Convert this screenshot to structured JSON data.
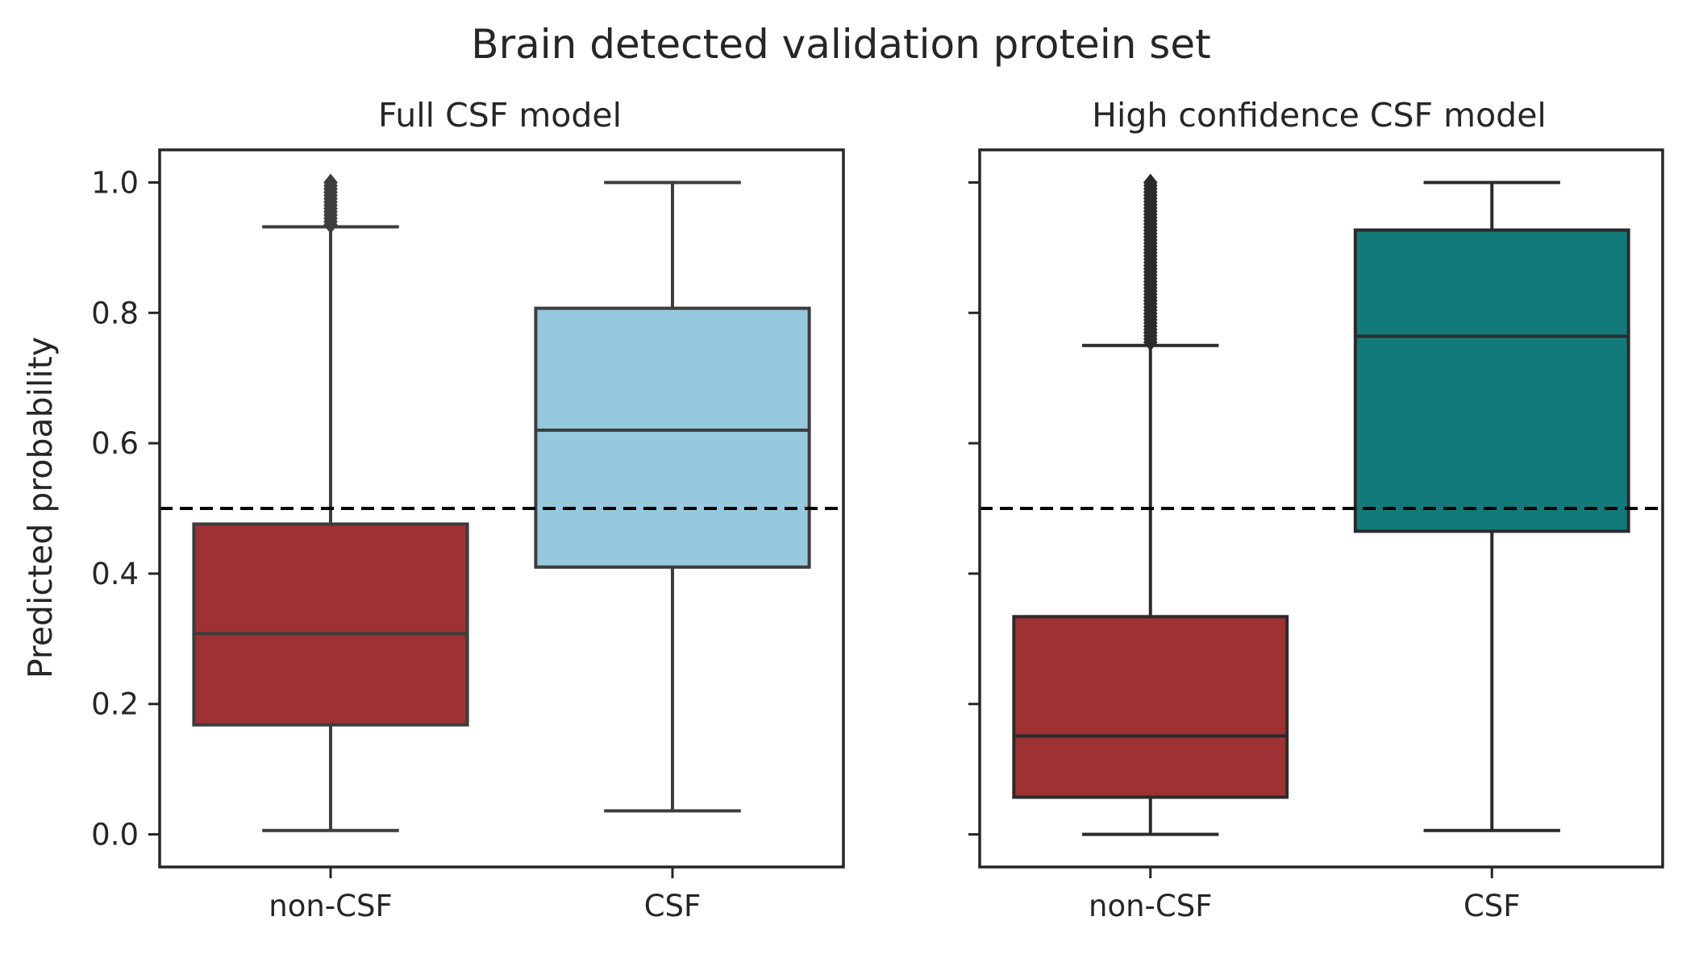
{
  "figure": {
    "title": "Brain detected validation protein set",
    "ylabel": "Predicted probability"
  },
  "chart_data": [
    {
      "type": "box",
      "title": "Full CSF model",
      "xlabel": "",
      "ylabel": "Predicted probability",
      "categories": [
        "non-CSF",
        "CSF"
      ],
      "ylim": [
        -0.05,
        1.05
      ],
      "yticks": [
        "0.0",
        "0.2",
        "0.4",
        "0.6",
        "0.8",
        "1.0"
      ],
      "grid": false,
      "reference_line": {
        "y": 0.5,
        "style": "dashed",
        "color": "#000000"
      },
      "boxes": [
        {
          "category": "non-CSF",
          "whisker_low": 0.006,
          "q1": 0.168,
          "median": 0.308,
          "q3": 0.476,
          "whisker_high": 0.932,
          "outliers_range": [
            0.935,
            1.0
          ],
          "color": "#9e3133"
        },
        {
          "category": "CSF",
          "whisker_low": 0.036,
          "q1": 0.41,
          "median": 0.62,
          "q3": 0.807,
          "whisker_high": 1.0,
          "outliers_range": null,
          "color": "#96c9de"
        }
      ]
    },
    {
      "type": "box",
      "title": "High confidence CSF model",
      "xlabel": "",
      "ylabel": "",
      "categories": [
        "non-CSF",
        "CSF"
      ],
      "ylim": [
        -0.05,
        1.05
      ],
      "yticks": [
        "0.0",
        "0.2",
        "0.4",
        "0.6",
        "0.8",
        "1.0"
      ],
      "grid": false,
      "reference_line": {
        "y": 0.5,
        "style": "dashed",
        "color": "#000000"
      },
      "boxes": [
        {
          "category": "non-CSF",
          "whisker_low": 0.0,
          "q1": 0.057,
          "median": 0.151,
          "q3": 0.334,
          "whisker_high": 0.75,
          "outliers_range": [
            0.755,
            1.0
          ],
          "color": "#9e3133"
        },
        {
          "category": "CSF",
          "whisker_low": 0.006,
          "q1": 0.465,
          "median": 0.764,
          "q3": 0.927,
          "whisker_high": 1.0,
          "outliers_range": null,
          "color": "#127b79"
        }
      ]
    }
  ]
}
